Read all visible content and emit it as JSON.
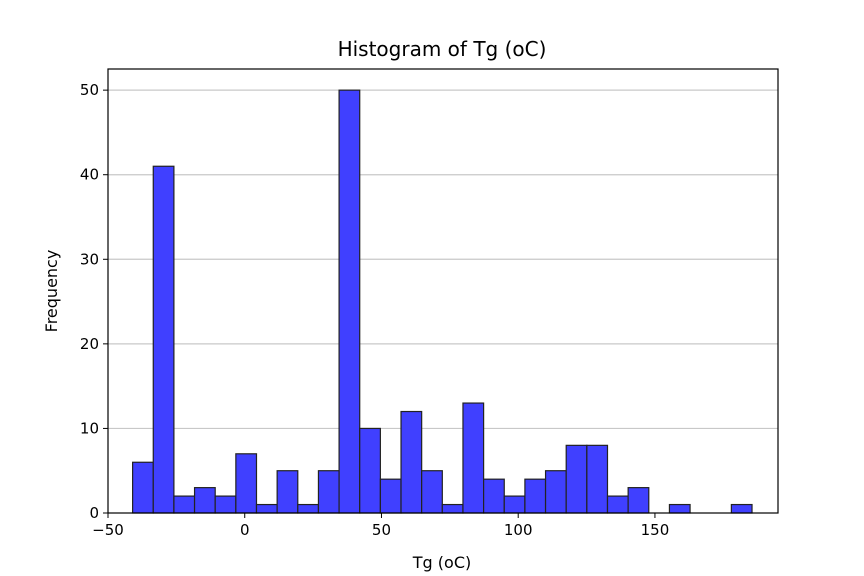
{
  "chart_data": {
    "type": "bar",
    "title": "Histogram of Tg (oC)",
    "xlabel": "Tg (oC)",
    "ylabel": "Frequency",
    "xlim": [
      -50,
      195
    ],
    "ylim": [
      0,
      52.5
    ],
    "grid": "y",
    "bar_color": "#4040ff",
    "bar_edge_color": "#222222",
    "bin_start": -41,
    "bin_width": 7.55,
    "counts": [
      6,
      41,
      2,
      3,
      2,
      7,
      1,
      5,
      1,
      5,
      50,
      10,
      4,
      12,
      5,
      1,
      13,
      4,
      2,
      4,
      5,
      8,
      8,
      2,
      3,
      0,
      1,
      0,
      0,
      1
    ],
    "x_ticks": [
      -50,
      0,
      50,
      100,
      150
    ],
    "x_tick_labels": [
      "−50",
      "0",
      "50",
      "100",
      "150"
    ],
    "y_ticks": [
      0,
      10,
      20,
      30,
      40,
      50
    ],
    "y_tick_labels": [
      "0",
      "10",
      "20",
      "30",
      "40",
      "50"
    ]
  }
}
